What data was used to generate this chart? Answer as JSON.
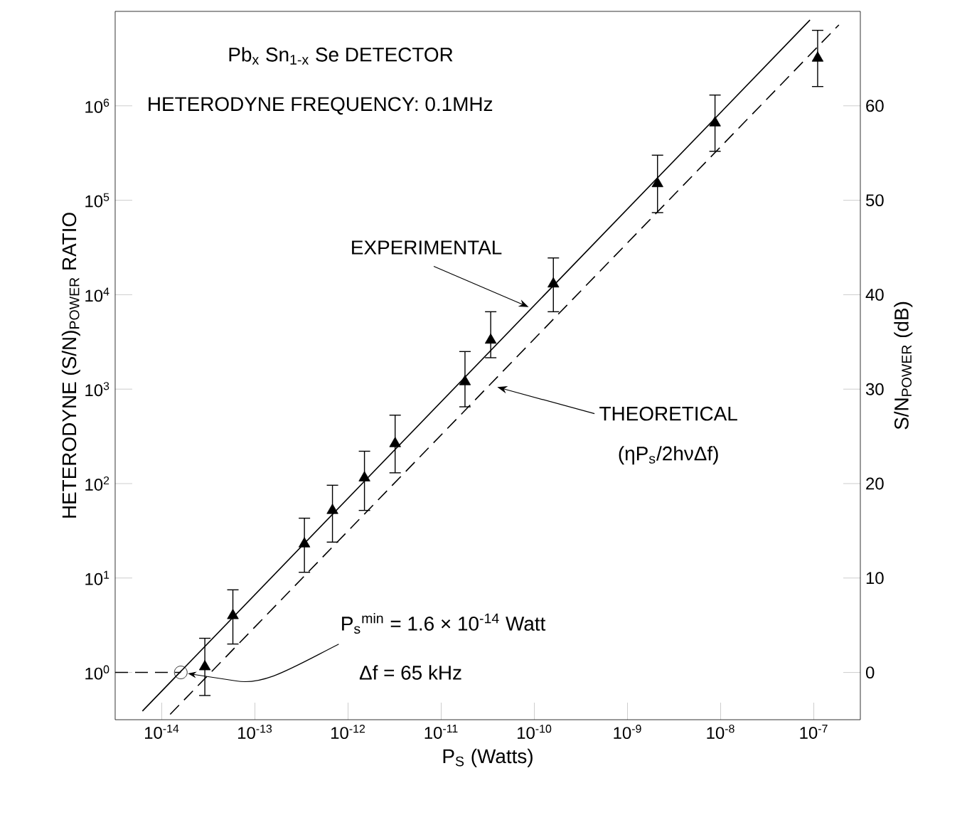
{
  "chart_data": {
    "type": "scatter",
    "xlabel": "P$_{S}$ (Watts)",
    "ylabel": "HETERODYNE (S/N)$_{POWER}$ RATIO",
    "y2label": "S/N$_{POWER}$ (dB)",
    "log": "xy",
    "xlim": [
      3.16e-15,
      3.16e-07
    ],
    "ylim": [
      0.316,
      10000000.0
    ],
    "y2lim": [
      -5,
      70
    ],
    "xticks": [
      {
        "value": 1e-14,
        "label": "10$^{-14}$"
      },
      {
        "value": 1e-13,
        "label": "10$^{-13}$"
      },
      {
        "value": 1e-12,
        "label": "10$^{-12}$"
      },
      {
        "value": 1e-11,
        "label": "10$^{-11}$"
      },
      {
        "value": 1e-10,
        "label": "10$^{-10}$"
      },
      {
        "value": 1e-09,
        "label": "10$^{-9}$"
      },
      {
        "value": 1e-08,
        "label": "10$^{-8}$"
      },
      {
        "value": 1e-07,
        "label": "10$^{-7}$"
      }
    ],
    "yticks": [
      {
        "value": 1,
        "label": "10$^{0}$"
      },
      {
        "value": 10,
        "label": "10$^{1}$"
      },
      {
        "value": 100,
        "label": "10$^{2}$"
      },
      {
        "value": 1000,
        "label": "10$^{3}$"
      },
      {
        "value": 10000,
        "label": "10$^{4}$"
      },
      {
        "value": 100000,
        "label": "10$^{5}$"
      },
      {
        "value": 1000000,
        "label": "10$^{6}$"
      }
    ],
    "y2ticks": [
      0,
      10,
      20,
      30,
      40,
      50,
      60
    ],
    "series": [
      {
        "marker": "triangle",
        "color": "#000000",
        "x": [
          2.9e-14,
          5.8e-14,
          3.4e-13,
          6.8e-13,
          1.5e-12,
          3.2e-12,
          1.8e-11,
          3.4e-11,
          1.6e-10,
          2.1e-09,
          8.7e-09,
          1.1e-07
        ],
        "values": [
          1.15,
          4,
          23,
          52,
          115,
          265,
          1200,
          3300,
          13000,
          150000,
          660000,
          3200000
        ],
        "errors": [
          [
            0.57,
            2.3
          ],
          [
            2,
            7.5
          ],
          [
            11.5,
            43
          ],
          [
            24,
            96
          ],
          [
            52,
            220
          ],
          [
            130,
            530
          ],
          [
            650,
            2500
          ],
          [
            2150,
            6600
          ],
          [
            6600,
            24500
          ],
          [
            74000,
            300000
          ],
          [
            330000,
            1300000
          ],
          [
            1600000,
            6300000
          ]
        ]
      },
      {
        "marker": "circle",
        "color": "#000000",
        "x": [
          1.6e-14
        ],
        "values": [
          1
        ]
      },
      {
        "type": "line",
        "line_style": "solid",
        "color": "#000000",
        "x": [
          6.2e-15,
          9.1e-08
        ],
        "values": [
          0.39,
          8100000
        ]
      },
      {
        "type": "line",
        "line_style": "dashed",
        "color": "#000000",
        "x": [
          1.23e-14,
          1.86e-07
        ],
        "values": [
          0.36,
          7200000
        ]
      },
      {
        "type": "line",
        "line_style": "dashed",
        "color": "#000000",
        "x": [
          3.16e-15,
          1.6e-14
        ],
        "values": [
          1,
          1
        ]
      }
    ],
    "annotations": [
      "Pb$_{x}$ Sn$_{1-x}$ Se  DETECTOR",
      "HETERODYNE FREQUENCY: 0.1MHz",
      {
        "text": "EXPERIMENTAL",
        "x": 8.7e-11,
        "y": 7400
      },
      {
        "text": "THEORETICAL",
        "x": 4e-11,
        "y": 1050
      },
      "(ηP$_{s}$/2hνΔf)",
      {
        "text": "P$_{s}$$^{min}$ = 1.6 × 10$^{-14}$ Watt",
        "x": 1.6e-14,
        "y": 1
      },
      "Δf = 65 kHz"
    ]
  }
}
